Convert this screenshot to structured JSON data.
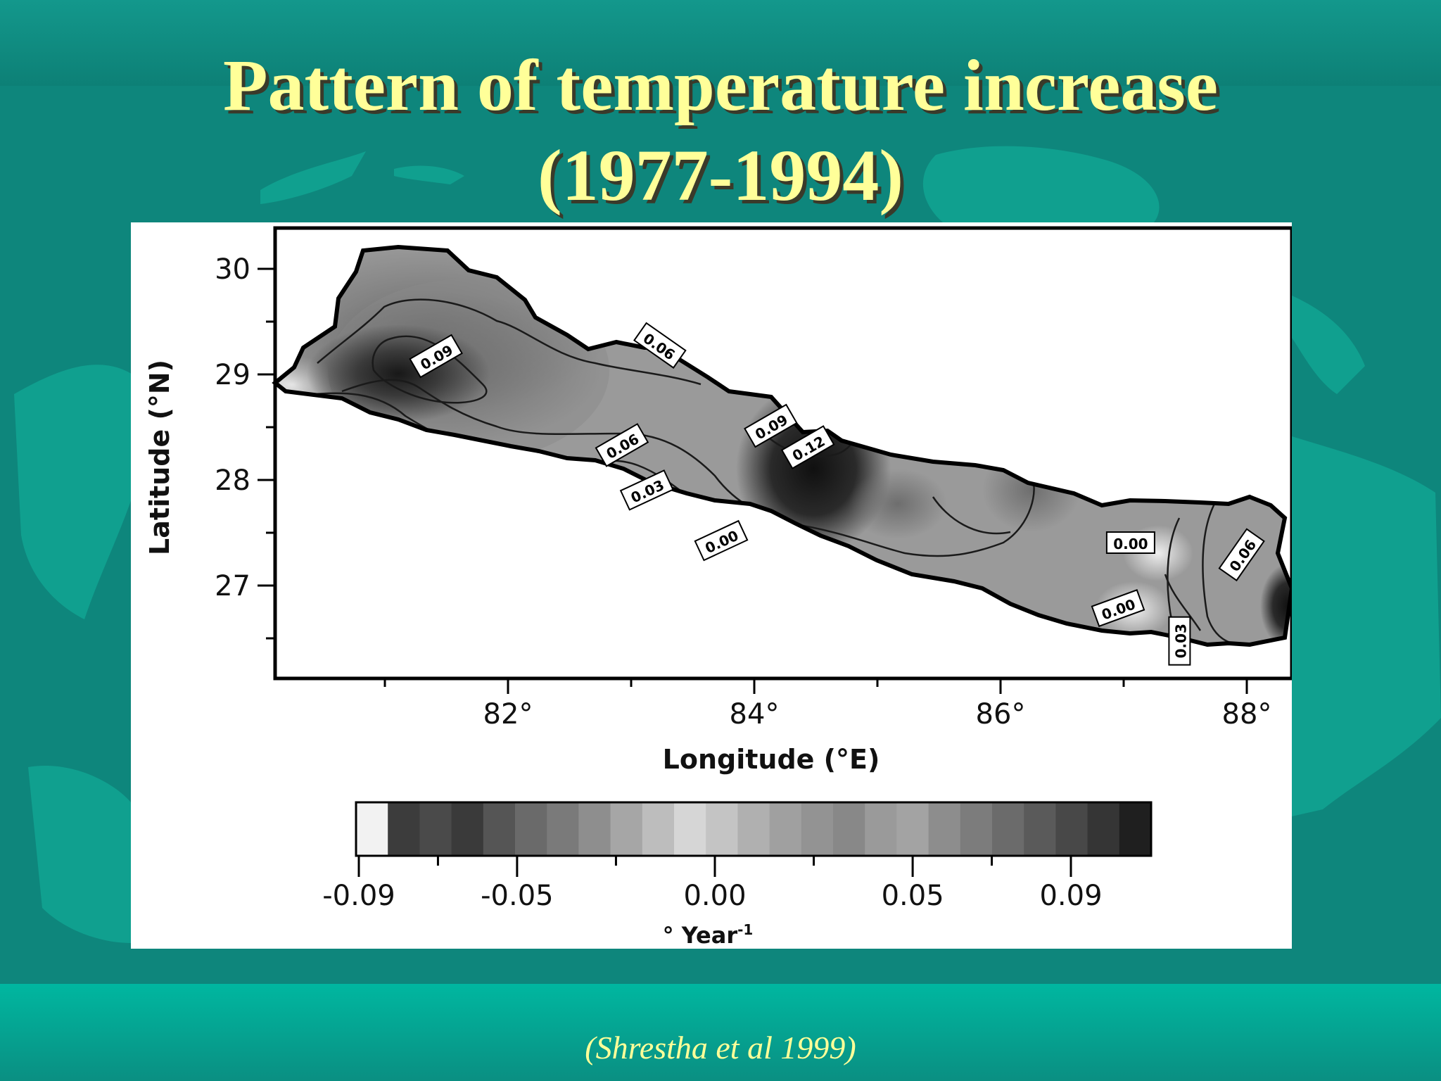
{
  "slide": {
    "title_line1": "Pattern of temperature increase",
    "title_line2": "(1977-1994)",
    "citation": "(Shrestha et al 1999)",
    "colors": {
      "background": "#0f8a80",
      "band": "#00b39c",
      "title": "#ffff99"
    }
  },
  "map": {
    "x_axis_label": "Longitude (°E)",
    "y_axis_label": "Latitude (°N)",
    "x_ticks": [
      "82°",
      "84°",
      "86°",
      "88°"
    ],
    "y_ticks": [
      "30",
      "29",
      "28",
      "27"
    ],
    "x_range": [
      80.1,
      88.3
    ],
    "y_range": [
      26.2,
      30.4
    ],
    "contour_labels": [
      {
        "text": "0.09",
        "lon": 81.4,
        "lat": 29.2
      },
      {
        "text": "0.06",
        "lon": 83.2,
        "lat": 29.3
      },
      {
        "text": "0.06",
        "lon": 82.9,
        "lat": 28.37
      },
      {
        "text": "0.03",
        "lon": 83.1,
        "lat": 27.95
      },
      {
        "text": "0.00",
        "lon": 83.7,
        "lat": 27.48
      },
      {
        "text": "0.09",
        "lon": 84.1,
        "lat": 28.55
      },
      {
        "text": "0.12",
        "lon": 84.4,
        "lat": 28.35
      },
      {
        "text": "0.00",
        "lon": 87.0,
        "lat": 27.46
      },
      {
        "text": "0.06",
        "lon": 87.9,
        "lat": 27.35
      },
      {
        "text": "0.00",
        "lon": 86.9,
        "lat": 26.85
      },
      {
        "text": "0.03",
        "lon": 87.4,
        "lat": 26.55
      }
    ],
    "colorbar": {
      "tick_labels": [
        "-0.09",
        "-0.05",
        "0.00",
        "0.05",
        "0.09"
      ],
      "tick_values": [
        -0.09,
        -0.05,
        0.0,
        0.05,
        0.09
      ],
      "range": [
        -0.09,
        0.09
      ],
      "unit_label": "° Year",
      "unit_exponent": "-1"
    }
  }
}
